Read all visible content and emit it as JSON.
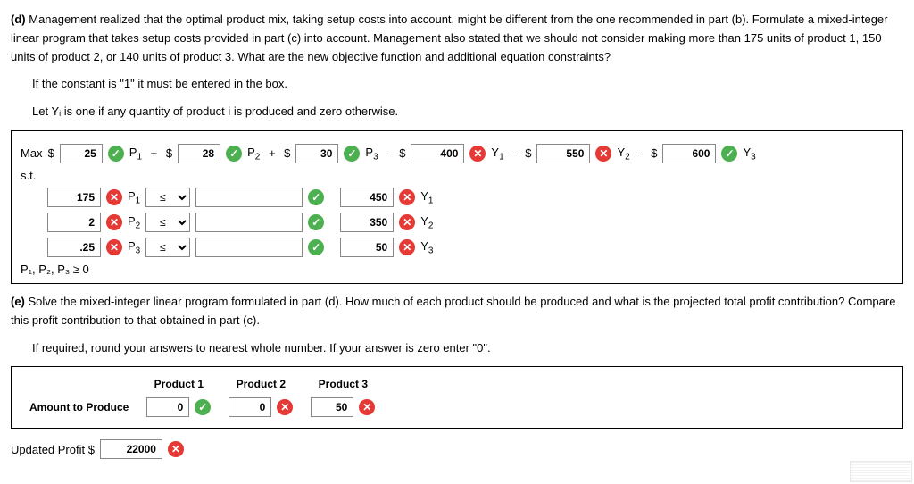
{
  "d": {
    "label": "(d)",
    "text1": "Management realized that the optimal product mix, taking setup costs into account, might be different from the one recommended in part (b). Formulate a mixed-integer linear program that takes setup costs provided in part (c) into account. Management also stated that we should not consider making more than 175 units of product 1, 150 units of product 2, or 140 units of product 3. What are the new objective function and additional equation constraints?",
    "text2": "If the constant is \"1\" it must be entered in the box.",
    "text3": "Let Yᵢ is one if any quantity of product i is produced and zero otherwise.",
    "max": "Max",
    "st": "s.t.",
    "obj": {
      "c1": "25",
      "v1": "P",
      "s1": "1",
      "c2": "28",
      "v2": "P",
      "s2": "2",
      "c3": "30",
      "v3": "P",
      "s3": "3",
      "c4": "400",
      "v4": "Y",
      "s4": "1",
      "c5": "550",
      "v5": "Y",
      "s5": "2",
      "c6": "600",
      "v6": "Y",
      "s6": "3"
    },
    "con": [
      {
        "lhs": "175",
        "lv": "P",
        "ls": "1",
        "op": "≤",
        "rhs": "450",
        "rv": "Y",
        "rs": "1"
      },
      {
        "lhs": "2",
        "lv": "P",
        "ls": "2",
        "op": "≤",
        "rhs": "350",
        "rv": "Y",
        "rs": "2"
      },
      {
        "lhs": ".25",
        "lv": "P",
        "ls": "3",
        "op": "≤",
        "rhs": "50",
        "rv": "Y",
        "rs": "3"
      }
    ],
    "nonneg": "P₁, P₂, P₃ ≥ 0"
  },
  "e": {
    "label": "(e)",
    "text1": "Solve the mixed-integer linear program formulated in part (d). How much of each product should be produced and what is the projected total profit contribution? Compare this profit contribution to that obtained in part (c).",
    "text2": "If required, round your answers to nearest whole number. If your answer is zero enter \"0\".",
    "headers": [
      "Product 1",
      "Product 2",
      "Product 3"
    ],
    "row_label": "Amount to Produce",
    "vals": [
      "0",
      "0",
      "50"
    ],
    "marks": [
      "ok",
      "err",
      "err"
    ],
    "profit_label": "Updated Profit $",
    "profit": "22000"
  }
}
